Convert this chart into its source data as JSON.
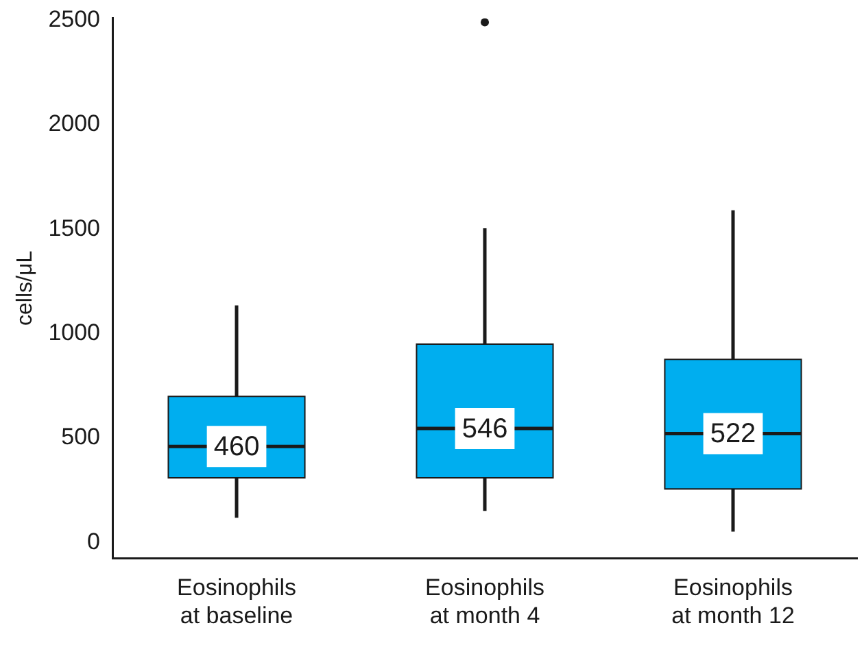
{
  "chart_data": {
    "type": "box",
    "ylabel": "cells/μL",
    "categories": [
      "Eosinophils\nat baseline",
      "Eosinophils\nat month 4",
      "Eosinophils\nat month 12"
    ],
    "boxes": [
      {
        "low": 119,
        "q1": 310,
        "median": 460,
        "q3": 700,
        "high": 1135
      },
      {
        "low": 152,
        "q1": 310,
        "median": 546,
        "q3": 950,
        "high": 1504,
        "outliers": [
          2490
        ]
      },
      {
        "low": 53,
        "q1": 257,
        "median": 522,
        "q3": 877,
        "high": 1590
      }
    ],
    "color": "#00aeef",
    "ylim": [
      -75,
      2510
    ],
    "yticks": [
      0,
      500,
      1000,
      1500,
      2000,
      2500
    ],
    "grid": false,
    "legend": false,
    "value_labels": [
      "460",
      "546",
      "522"
    ]
  }
}
